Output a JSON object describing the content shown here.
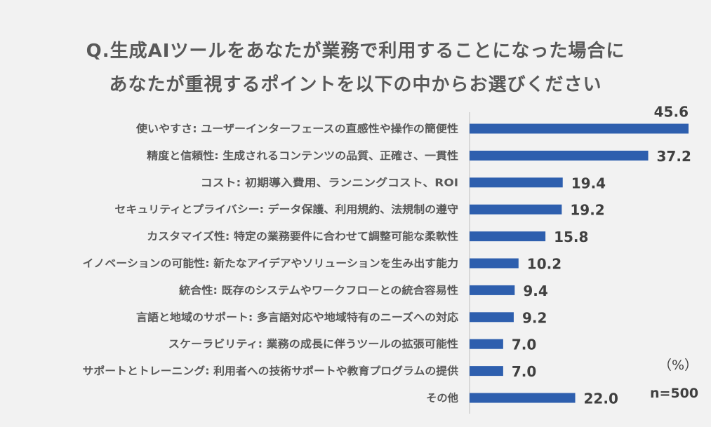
{
  "title": {
    "line1": "Q.生成AIツールをあなたが業務で利用することになった場合に",
    "line2": "あなたが重視するポイントを以下の中からお選びください"
  },
  "unit": "（%）",
  "sample_size": "n=500",
  "colors": {
    "bar": "#2e5fae",
    "label": "#595959",
    "value": "#404040",
    "axis": "#bfbfbf",
    "background": "#f2f2f2"
  },
  "chart_data": {
    "type": "bar",
    "orientation": "horizontal",
    "categories": [
      "使いやすさ: ユーザーインターフェースの直感性や操作の簡便性",
      "精度と信頼性: 生成されるコンテンツの品質、正確さ、一貫性",
      "コスト: 初期導入費用、ランニングコスト、ROI",
      "セキュリティとプライバシー: データ保護、利用規約、法規制の遵守",
      "カスタマイズ性: 特定の業務要件に合わせて調整可能な柔軟性",
      "イノベーションの可能性: 新たなアイデアやソリューションを生み出す能力",
      "統合性: 既存のシステムやワークフローとの統合容易性",
      "言語と地域のサポート: 多言語対応や地域特有のニーズへの対応",
      "スケーラビリティ: 業務の成長に伴うツールの拡張可能性",
      "サポートとトレーニング: 利用者への技術サポートや教育プログラムの提供",
      "その他"
    ],
    "values": [
      45.6,
      37.2,
      19.4,
      19.2,
      15.8,
      10.2,
      9.4,
      9.2,
      7.0,
      7.0,
      22.0
    ],
    "value_labels": [
      "45.6",
      "37.2",
      "19.4",
      "19.2",
      "15.8",
      "10.2",
      "9.4",
      "9.2",
      "7.0",
      "7.0",
      "22.0"
    ],
    "xlim": [
      0,
      45.6
    ],
    "grid": false,
    "legend": "none"
  }
}
